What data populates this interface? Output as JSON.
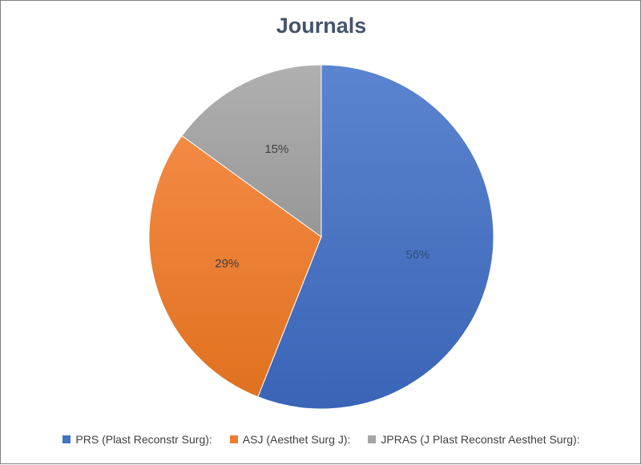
{
  "chart_data": {
    "type": "pie",
    "title": "Journals",
    "categories": [
      "PRS (Plast Reconstr Surg):",
      "ASJ (Aesthet Surg J):",
      "JPRAS (J Plast Reconstr Aesthet Surg):"
    ],
    "values": [
      56,
      29,
      15
    ],
    "data_labels": [
      "56%",
      "29%",
      "15%"
    ],
    "colors": [
      "#4472c4",
      "#ed7d31",
      "#a5a5a5"
    ],
    "label_colors": [
      "#2f4f7a",
      "#404040",
      "#404040"
    ],
    "legend_position": "bottom"
  }
}
